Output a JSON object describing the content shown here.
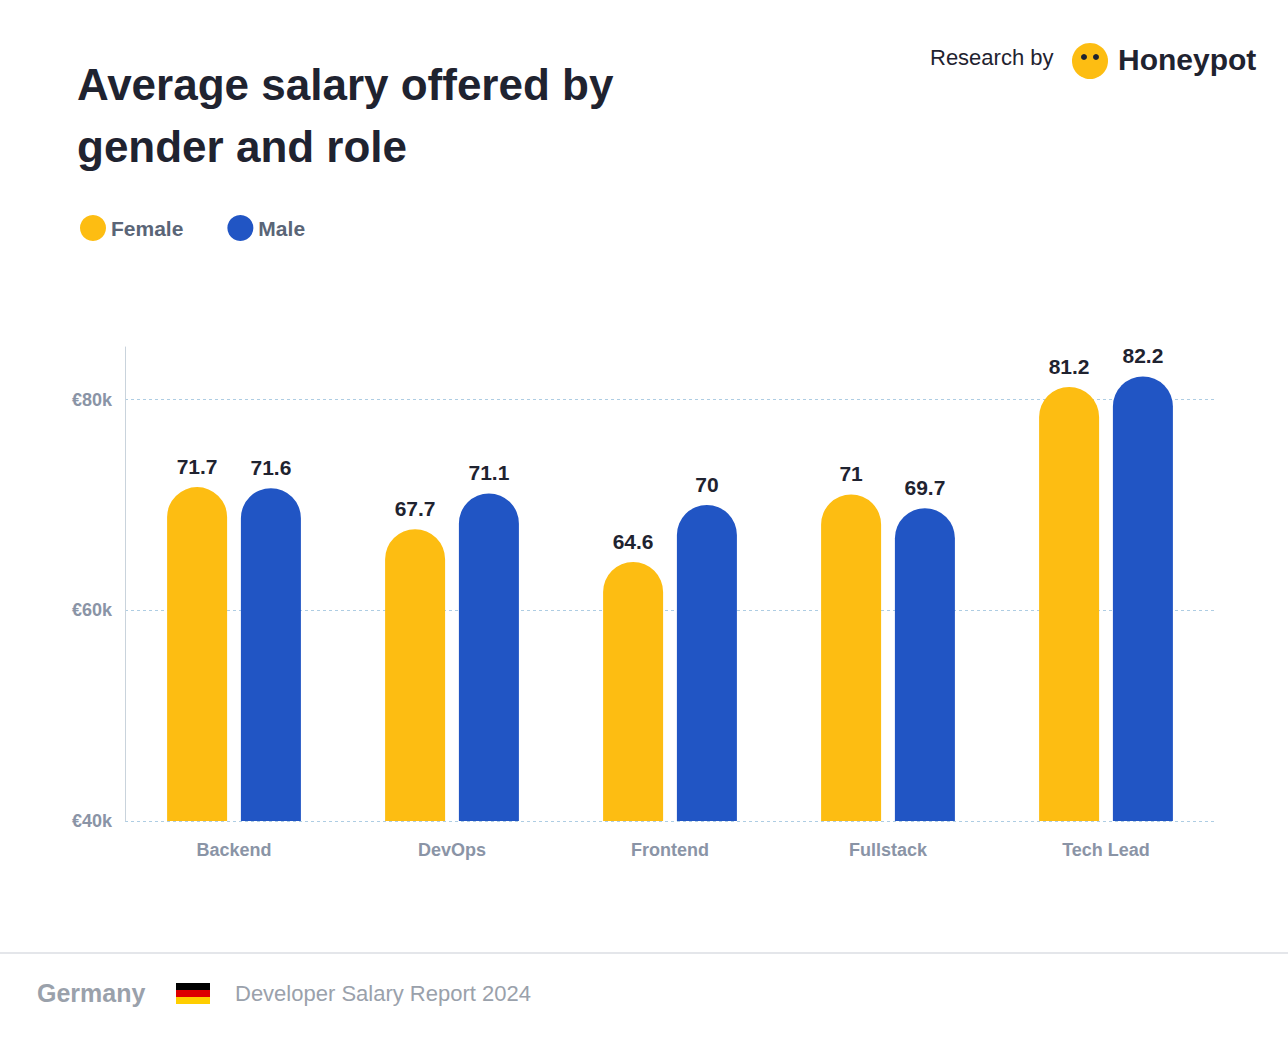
{
  "chart_data": {
    "type": "bar",
    "title": "Average salary offered by gender and role",
    "annotations": [
      "Research by",
      "Honeypot",
      "Germany",
      "Developer Salary Report 2024"
    ],
    "categories": [
      "Backend",
      "DevOps",
      "Frontend",
      "Fullstack",
      "Tech Lead"
    ],
    "series": [
      {
        "name": "Female",
        "color": "#fdbd12",
        "values": [
          71.7,
          67.7,
          64.6,
          71,
          81.2
        ]
      },
      {
        "name": "Male",
        "color": "#2155c4",
        "values": [
          71.6,
          71.1,
          70,
          69.7,
          82.2
        ]
      }
    ],
    "ylim": [
      40,
      85
    ],
    "yticks": [
      {
        "value": 40,
        "label": "€40k"
      },
      {
        "value": 60,
        "label": "€60k"
      },
      {
        "value": 80,
        "label": "€80k"
      }
    ],
    "grid": true,
    "legend": "top-left",
    "data_labels": true
  }
}
